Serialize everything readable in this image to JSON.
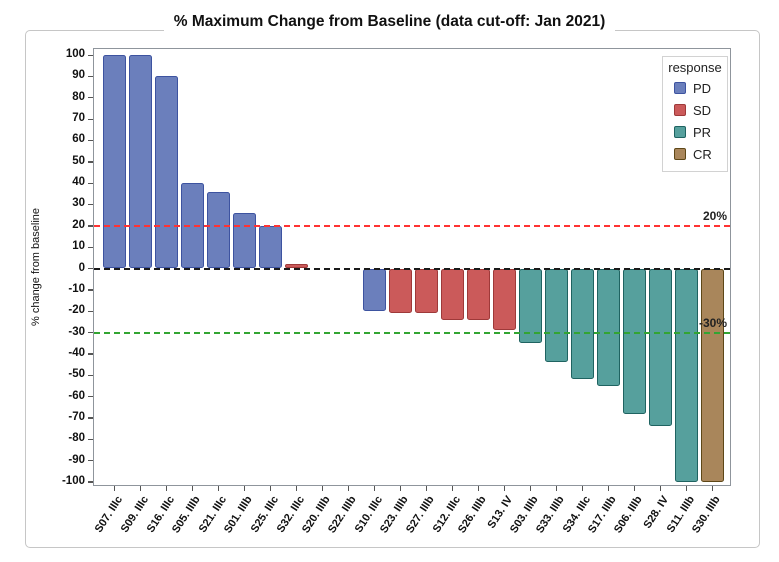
{
  "title": "% Maximum Change from Baseline (data cut-off: Jan 2021)",
  "chart_data": {
    "type": "bar",
    "title": "% Maximum Change from Baseline (data cut-off: Jan 2021)",
    "xlabel": "",
    "ylabel": "% change from baseline",
    "ylim": [
      -100,
      100
    ],
    "yticks": [
      100,
      90,
      80,
      70,
      60,
      50,
      40,
      30,
      20,
      10,
      0,
      -10,
      -20,
      -30,
      -40,
      -50,
      -60,
      -70,
      -80,
      -90,
      -100
    ],
    "grid": false,
    "categories": [
      "S07. IIIc",
      "S09. IIIc",
      "S16. IIIc",
      "S05. IIIb",
      "S21. IIIc",
      "S01. IIIb",
      "S25. IIIc",
      "S32. IIIc",
      "S20. IIIb",
      "S22. IIIb",
      "S10. IIIc",
      "S23. IIIb",
      "S27. IIIb",
      "S12. IIIc",
      "S26. IIIb",
      "S13. IV",
      "S03. IIIb",
      "S33. IIIb",
      "S34. IIIc",
      "S17. IIIb",
      "S06. IIIb",
      "S28. IV",
      "S11. IIIb",
      "S30. IIIb"
    ],
    "values": [
      100,
      100,
      90,
      40,
      36,
      26,
      20,
      2,
      0,
      0,
      -20,
      -21,
      -21,
      -24,
      -24,
      -29,
      -35,
      -44,
      -52,
      -55,
      -68,
      -74,
      -100,
      -100
    ],
    "responses": [
      "PD",
      "PD",
      "PD",
      "PD",
      "PD",
      "PD",
      "PD",
      "SD",
      "SD",
      "SD",
      "PD",
      "SD",
      "SD",
      "SD",
      "SD",
      "SD",
      "PR",
      "PR",
      "PR",
      "PR",
      "PR",
      "PR",
      "PR",
      "CR"
    ],
    "legend": {
      "title": "response",
      "position": "top-right",
      "entries": [
        {
          "label": "PD",
          "fill": "#6B7FBC",
          "stroke": "#3D53A0"
        },
        {
          "label": "SD",
          "fill": "#CB5A5A",
          "stroke": "#9E3939"
        },
        {
          "label": "PR",
          "fill": "#56A09D",
          "stroke": "#1F6361"
        },
        {
          "label": "CR",
          "fill": "#A9865B",
          "stroke": "#5E4717"
        }
      ]
    },
    "reference_lines": [
      {
        "value": 20,
        "color": "#FF3333",
        "style": "dashed",
        "label": "20%"
      },
      {
        "value": 0,
        "color": "#1A1A1A",
        "style": "dashed",
        "label": ""
      },
      {
        "value": -30,
        "color": "#33A532",
        "style": "dashed",
        "label": "-30%"
      }
    ]
  }
}
